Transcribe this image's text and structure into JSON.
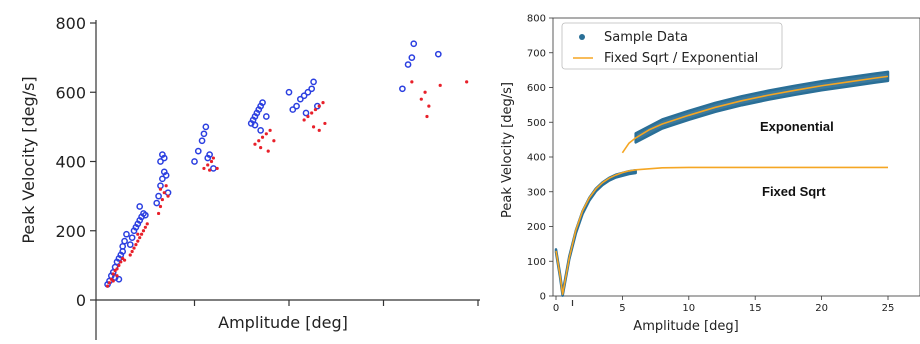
{
  "chart_data": [
    {
      "type": "scatter",
      "xlabel": "Amplitude [deg]",
      "ylabel": "Peak Velocity [deg/s]",
      "xlim": [
        0,
        25
      ],
      "ylim": [
        0,
        800
      ],
      "yticks": [
        0,
        200,
        400,
        600,
        800
      ],
      "yticklabels": [
        "0",
        "200",
        "400",
        "600",
        "800"
      ],
      "xticks": [
        5,
        10,
        15,
        20,
        25
      ],
      "grid": false,
      "colors": {
        "blue": "#2b3fe0",
        "red": "#e8202a"
      },
      "series": [
        {
          "marker": "open-circle",
          "color": "#2b3fe0",
          "points": [
            [
              0.4,
              45
            ],
            [
              0.5,
              55
            ],
            [
              0.6,
              70
            ],
            [
              0.7,
              80
            ],
            [
              0.8,
              95
            ],
            [
              0.9,
              110
            ],
            [
              1.0,
              120
            ],
            [
              1.1,
              130
            ],
            [
              1.2,
              140
            ],
            [
              1.2,
              155
            ],
            [
              1.3,
              170
            ],
            [
              1.4,
              190
            ],
            [
              1.0,
              60
            ],
            [
              0.8,
              65
            ],
            [
              1.6,
              160
            ],
            [
              1.7,
              180
            ],
            [
              1.8,
              200
            ],
            [
              1.9,
              210
            ],
            [
              2.0,
              220
            ],
            [
              2.1,
              230
            ],
            [
              2.2,
              240
            ],
            [
              2.3,
              250
            ],
            [
              2.1,
              270
            ],
            [
              2.4,
              245
            ],
            [
              3.0,
              280
            ],
            [
              3.1,
              300
            ],
            [
              3.2,
              330
            ],
            [
              3.3,
              350
            ],
            [
              3.4,
              370
            ],
            [
              3.2,
              400
            ],
            [
              3.4,
              410
            ],
            [
              3.3,
              420
            ],
            [
              3.5,
              360
            ],
            [
              3.6,
              310
            ],
            [
              5.0,
              400
            ],
            [
              5.2,
              430
            ],
            [
              5.4,
              460
            ],
            [
              5.5,
              480
            ],
            [
              5.6,
              500
            ],
            [
              5.8,
              420
            ],
            [
              6.0,
              380
            ],
            [
              5.7,
              410
            ],
            [
              8.0,
              510
            ],
            [
              8.1,
              520
            ],
            [
              8.2,
              530
            ],
            [
              8.3,
              540
            ],
            [
              8.4,
              550
            ],
            [
              8.5,
              560
            ],
            [
              8.6,
              570
            ],
            [
              8.2,
              505
            ],
            [
              8.8,
              530
            ],
            [
              8.5,
              490
            ],
            [
              10.2,
              550
            ],
            [
              10.4,
              560
            ],
            [
              10.6,
              580
            ],
            [
              10.8,
              590
            ],
            [
              11.0,
              600
            ],
            [
              11.2,
              610
            ],
            [
              11.3,
              630
            ],
            [
              10.9,
              540
            ],
            [
              11.5,
              560
            ],
            [
              10.0,
              600
            ],
            [
              16.0,
              610
            ],
            [
              16.3,
              680
            ],
            [
              16.5,
              700
            ],
            [
              16.6,
              740
            ],
            [
              17.9,
              710
            ]
          ]
        },
        {
          "marker": "dot",
          "color": "#e8202a",
          "points": [
            [
              0.4,
              40
            ],
            [
              0.5,
              50
            ],
            [
              0.6,
              60
            ],
            [
              0.7,
              75
            ],
            [
              0.8,
              85
            ],
            [
              0.9,
              90
            ],
            [
              1.0,
              100
            ],
            [
              1.1,
              110
            ],
            [
              1.2,
              120
            ],
            [
              1.3,
              115
            ],
            [
              0.9,
              70
            ],
            [
              0.7,
              55
            ],
            [
              1.6,
              130
            ],
            [
              1.7,
              140
            ],
            [
              1.8,
              150
            ],
            [
              1.9,
              160
            ],
            [
              2.0,
              170
            ],
            [
              2.1,
              180
            ],
            [
              2.2,
              190
            ],
            [
              2.3,
              200
            ],
            [
              2.4,
              210
            ],
            [
              2.5,
              220
            ],
            [
              2.0,
              190
            ],
            [
              3.1,
              250
            ],
            [
              3.2,
              270
            ],
            [
              3.3,
              290
            ],
            [
              3.4,
              310
            ],
            [
              3.5,
              330
            ],
            [
              3.2,
              320
            ],
            [
              3.6,
              300
            ],
            [
              5.5,
              380
            ],
            [
              5.7,
              390
            ],
            [
              5.9,
              400
            ],
            [
              6.0,
              410
            ],
            [
              5.8,
              375
            ],
            [
              6.2,
              380
            ],
            [
              8.2,
              450
            ],
            [
              8.4,
              460
            ],
            [
              8.6,
              470
            ],
            [
              8.8,
              480
            ],
            [
              9.0,
              490
            ],
            [
              8.5,
              440
            ],
            [
              8.9,
              430
            ],
            [
              9.2,
              460
            ],
            [
              10.8,
              520
            ],
            [
              11.0,
              530
            ],
            [
              11.2,
              540
            ],
            [
              11.4,
              550
            ],
            [
              11.6,
              560
            ],
            [
              11.8,
              570
            ],
            [
              11.3,
              500
            ],
            [
              11.9,
              510
            ],
            [
              11.6,
              490
            ],
            [
              16.5,
              630
            ],
            [
              17.0,
              580
            ],
            [
              17.2,
              600
            ],
            [
              17.4,
              560
            ],
            [
              18.0,
              620
            ],
            [
              19.4,
              630
            ],
            [
              17.3,
              530
            ]
          ]
        }
      ]
    },
    {
      "type": "scatter",
      "xlabel": "Amplitude [deg]",
      "ylabel": "Peak Velocity [deg/s]",
      "xlim": [
        0,
        25
      ],
      "ylim": [
        0,
        800
      ],
      "xticks": [
        0,
        5,
        10,
        15,
        20,
        25
      ],
      "xticklabels": [
        "0",
        "5",
        "10",
        "15",
        "20",
        "25"
      ],
      "yticks": [
        0,
        100,
        200,
        300,
        400,
        500,
        600,
        700,
        800
      ],
      "yticklabels": [
        "0",
        "100",
        "200",
        "300",
        "400",
        "500",
        "600",
        "700",
        "800"
      ],
      "grid": false,
      "legend": {
        "placement": "top-left",
        "entries": [
          "Sample Data",
          "Fixed Sqrt / Exponential"
        ]
      },
      "annotations": [
        "Exponential",
        "Fixed Sqrt"
      ],
      "colors": {
        "sample": "#2a6f97",
        "fit": "#f5a623"
      },
      "series": [
        {
          "name": "Sample Data",
          "kind": "band",
          "color": "#2a6f97",
          "segments": [
            {
              "x": [
                0.0,
                0.3,
                0.5,
                1.0,
                1.5,
                2.0,
                2.5,
                3.0,
                3.5,
                4.0,
                4.5,
                5.0,
                5.5,
                6.0
              ],
              "y": [
                130,
                60,
                5,
                110,
                185,
                240,
                278,
                305,
                323,
                336,
                345,
                350,
                355,
                358
              ],
              "spread": 4
            },
            {
              "x": [
                6.0,
                8.0,
                10.0,
                12.0,
                14.0,
                16.0,
                18.0,
                20.0,
                22.0,
                24.0,
                25.0
              ],
              "y": [
                455,
                495,
                520,
                543,
                562,
                578,
                592,
                605,
                616,
                627,
                632
              ],
              "spread": 13
            }
          ]
        },
        {
          "name": "Fixed Sqrt / Exponential",
          "kind": "line",
          "color": "#f5a623",
          "segments": [
            {
              "x": [
                0.0,
                0.3,
                0.5,
                1.0,
                1.5,
                2.0,
                2.5,
                3.0,
                3.5,
                4.0,
                4.5,
                5.0,
                5.5,
                6.0,
                8.0,
                10.0,
                15.0,
                20.0,
                25.0
              ],
              "y": [
                130,
                60,
                5,
                110,
                190,
                245,
                282,
                308,
                326,
                339,
                348,
                355,
                360,
                363,
                369,
                370,
                370,
                370,
                370
              ]
            },
            {
              "x": [
                5.0,
                5.5,
                6.0,
                7.0,
                8.0,
                10.0,
                12.0,
                14.0,
                16.0,
                18.0,
                20.0,
                22.0,
                24.0,
                25.0
              ],
              "y": [
                412,
                440,
                455,
                478,
                495,
                520,
                543,
                562,
                578,
                592,
                605,
                616,
                627,
                632
              ]
            }
          ]
        }
      ]
    }
  ]
}
